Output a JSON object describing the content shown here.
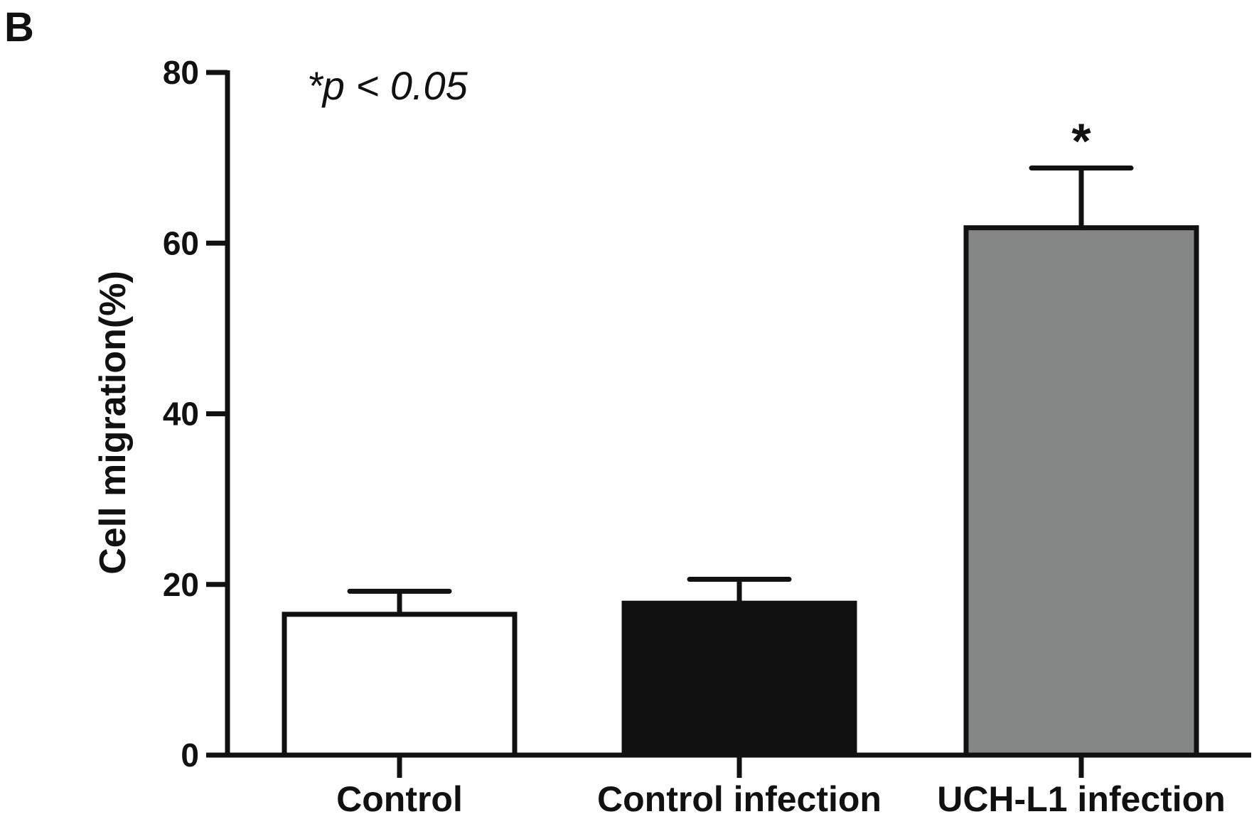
{
  "panel_label": "B",
  "chart_data": {
    "type": "bar",
    "title": "",
    "xlabel": "",
    "ylabel": "Cell migration(%)",
    "ylim": [
      0,
      80
    ],
    "yticks": [
      0,
      20,
      40,
      60,
      80
    ],
    "categories": [
      "Control",
      "Control infection",
      "UCH-L1 infection"
    ],
    "values": [
      16.5,
      17.8,
      61.8
    ],
    "errors": [
      2.7,
      2.8,
      7.0
    ],
    "significance": [
      "",
      "",
      "*"
    ],
    "bar_colors": [
      "#ffffff",
      "#111111",
      "#848685"
    ],
    "annotation": "*p < 0.05",
    "grid": false
  }
}
